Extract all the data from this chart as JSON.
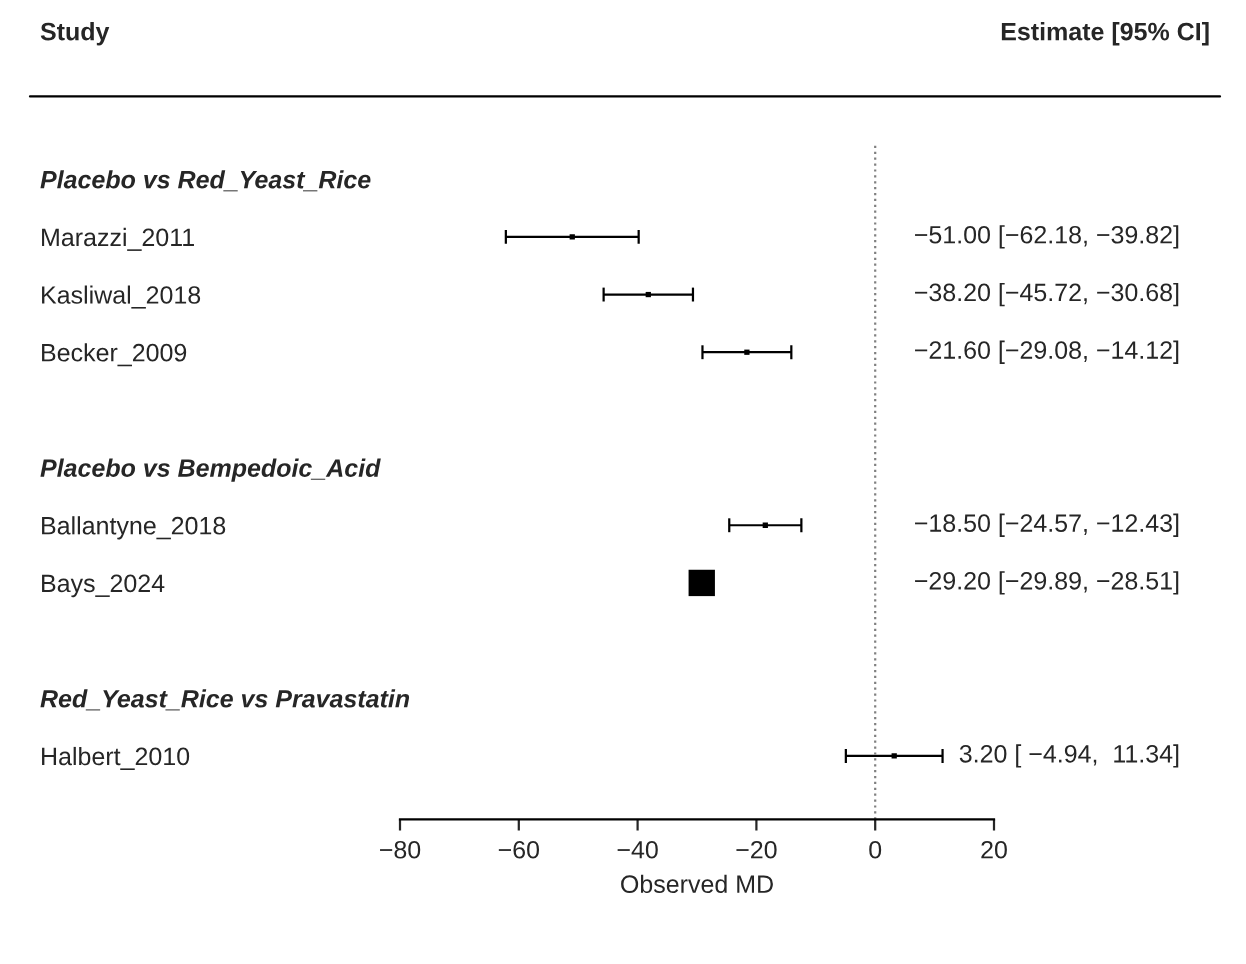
{
  "chart_data": {
    "type": "scatter",
    "orientation": "horizontal",
    "xlabel": "Observed MD",
    "categories": [
      "Placebo vs Red_Yeast_Rice",
      "Marazzi_2011",
      "Kasliwal_2018",
      "Becker_2009",
      null,
      "Placebo vs Bempedoic_Acid",
      "Ballantyne_2018",
      "Bays_2024",
      null,
      "Red_Yeast_Rice vs Pravastatin",
      "Halbert_2010"
    ],
    "color": "#000000",
    "values": [
      null,
      -51.0,
      -38.2,
      -21.6,
      null,
      null,
      -18.5,
      -29.2,
      null,
      null,
      3.2
    ],
    "errors": [
      null,
      [
        -62.18,
        -39.82
      ],
      [
        -45.72,
        -30.68
      ],
      [
        -29.08,
        -14.12
      ],
      null,
      null,
      [
        -24.57,
        -12.43
      ],
      null,
      null,
      null,
      [
        -4.94,
        11.34
      ]
    ],
    "sizes": [
      null,
      0.04,
      0.04,
      0.04,
      null,
      null,
      0.04,
      1,
      null,
      null,
      0.04
    ],
    "value_labels": [
      null,
      "−51.00 [−62.18, −39.82]",
      "−38.20 [−45.72, −30.68]",
      "−21.60 [−29.08, −14.12]",
      null,
      null,
      "−18.50 [−24.57, −12.43]",
      "−29.20 [−29.89, −28.51]",
      null,
      null,
      "3.20 [ −4.94,  11.34]"
    ],
    "xlim": [
      -80,
      20
    ],
    "xticks": [
      {
        "value": -80,
        "label": "−80"
      },
      {
        "value": -60,
        "label": "−60"
      },
      {
        "value": -40,
        "label": "−40"
      },
      {
        "value": -20,
        "label": "−20"
      },
      0,
      20
    ],
    "marker": "square",
    "grid": false,
    "legend": false,
    "ref_lines": [
      {
        "axis": "x",
        "value": 0,
        "line_style": "dotted",
        "color": "#808080"
      }
    ],
    "annotations": [
      "Study",
      "Estimate [95% CI]"
    ]
  }
}
